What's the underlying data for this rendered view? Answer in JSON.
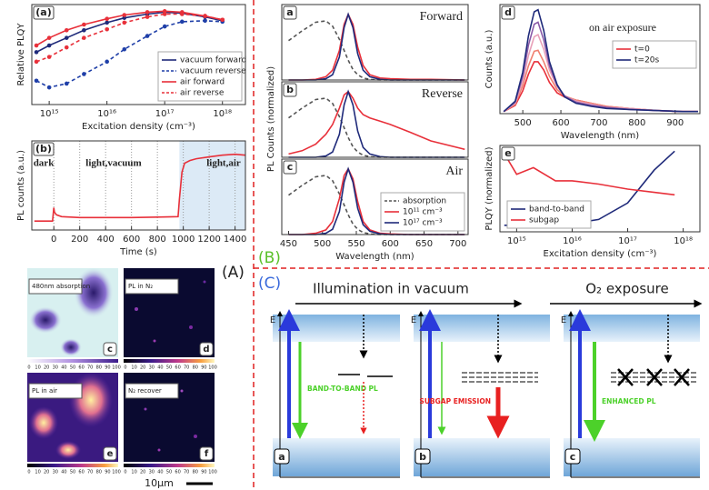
{
  "chart_data": [
    {
      "type": "line",
      "panel": "(a)",
      "ylabel": "Relative PLQY",
      "xlabel": "Excitation density (cm⁻³)",
      "xlog": true,
      "xlim": [
        500000000000000.0,
        2.5e+18
      ],
      "ylim": [
        0,
        1.05
      ],
      "xticks": [
        {
          "value": 1000000000000000.0,
          "label": "10¹⁵"
        },
        {
          "value": 1e+16,
          "label": "10¹⁶"
        },
        {
          "value": 1e+17,
          "label": "10¹⁷"
        },
        {
          "value": 1e+18,
          "label": "10¹⁸"
        }
      ],
      "x": [
        600000000000000.0,
        1000000000000000.0,
        2000000000000000.0,
        4000000000000000.0,
        1e+16,
        2e+16,
        5e+16,
        1e+17,
        2e+17,
        5e+17,
        1e+18
      ],
      "legend": "lower right",
      "series": [
        {
          "name": "vacuum forward",
          "color": "#1f2a7a",
          "marker": true,
          "values": [
            0.55,
            0.62,
            0.7,
            0.78,
            0.86,
            0.91,
            0.95,
            0.97,
            0.96,
            0.92,
            0.88
          ]
        },
        {
          "name": "vacuum reverse",
          "color": "#1f3fa8",
          "marker": true,
          "dash": true,
          "values": [
            0.25,
            0.18,
            0.22,
            0.32,
            0.45,
            0.58,
            0.72,
            0.82,
            0.87,
            0.88,
            0.87
          ]
        },
        {
          "name": "air forward",
          "color": "#e8303a",
          "marker": true,
          "values": [
            0.62,
            0.7,
            0.78,
            0.84,
            0.9,
            0.94,
            0.97,
            0.98,
            0.97,
            0.93,
            0.89
          ]
        },
        {
          "name": "air reverse",
          "color": "#e8303a",
          "marker": true,
          "dash": true,
          "values": [
            0.45,
            0.5,
            0.6,
            0.7,
            0.79,
            0.86,
            0.92,
            0.95,
            0.95,
            0.93,
            0.89
          ]
        }
      ]
    },
    {
      "type": "line",
      "panel": "(b)",
      "ylabel": "PL counts (a.u.)",
      "xlabel": "Time (s)",
      "grid": true,
      "xlim": [
        -170,
        1480
      ],
      "ylim": [
        0,
        1
      ],
      "xticks": [
        0,
        200,
        400,
        600,
        800,
        1000,
        1200,
        1400
      ],
      "shaded_xlim": [
        970,
        1480
      ],
      "annotations": [
        "dark",
        "light,vacuum",
        "light,air"
      ],
      "x": [
        -150,
        -10,
        0,
        5,
        20,
        60,
        200,
        400,
        600,
        800,
        960,
        970,
        990,
        1010,
        1050,
        1100,
        1200,
        1300,
        1400,
        1480
      ],
      "series": [
        {
          "color": "#e8303a",
          "values": [
            0.1,
            0.1,
            0.25,
            0.2,
            0.17,
            0.15,
            0.14,
            0.14,
            0.14,
            0.145,
            0.15,
            0.35,
            0.65,
            0.75,
            0.78,
            0.8,
            0.82,
            0.84,
            0.85,
            0.84
          ]
        }
      ]
    },
    {
      "type": "line",
      "panel": "a",
      "title": "Forward",
      "xlim": [
        440,
        715
      ],
      "ylim": [
        0,
        1.15
      ],
      "x": [
        450,
        470,
        490,
        505,
        515,
        525,
        532,
        538,
        545,
        552,
        560,
        570,
        585,
        600,
        630,
        660,
        710
      ],
      "series": [
        {
          "color": "#555555",
          "dash": true,
          "values": [
            0.6,
            0.75,
            0.88,
            0.9,
            0.82,
            0.62,
            0.45,
            0.3,
            0.16,
            0.08,
            0.03,
            0.01,
            0,
            0,
            0,
            0,
            0
          ]
        },
        {
          "color": "#e8303a",
          "values": [
            0,
            0,
            0.01,
            0.05,
            0.15,
            0.45,
            0.85,
            1.0,
            0.85,
            0.5,
            0.22,
            0.08,
            0.03,
            0.02,
            0.01,
            0.01,
            0
          ]
        },
        {
          "color": "#1f2a7a",
          "values": [
            0,
            0,
            0,
            0.02,
            0.08,
            0.35,
            0.8,
            1.0,
            0.8,
            0.4,
            0.15,
            0.05,
            0.01,
            0,
            0,
            0,
            0
          ]
        }
      ]
    },
    {
      "type": "line",
      "panel": "b",
      "title": "Reverse",
      "ylabel": "PL Counts (normalized)",
      "xlim": [
        440,
        715
      ],
      "ylim": [
        0,
        1.15
      ],
      "x": [
        450,
        470,
        490,
        505,
        515,
        525,
        532,
        538,
        545,
        552,
        560,
        570,
        585,
        600,
        630,
        660,
        710
      ],
      "series": [
        {
          "color": "#555555",
          "dash": true,
          "values": [
            0.6,
            0.75,
            0.88,
            0.9,
            0.82,
            0.62,
            0.45,
            0.3,
            0.16,
            0.08,
            0.03,
            0.01,
            0,
            0,
            0,
            0,
            0
          ]
        },
        {
          "color": "#e8303a",
          "values": [
            0.05,
            0.1,
            0.2,
            0.35,
            0.5,
            0.75,
            0.95,
            1.0,
            0.9,
            0.75,
            0.65,
            0.6,
            0.55,
            0.5,
            0.38,
            0.25,
            0.12
          ]
        },
        {
          "color": "#1f2a7a",
          "values": [
            0,
            0,
            0,
            0.02,
            0.08,
            0.35,
            0.8,
            1.0,
            0.8,
            0.4,
            0.15,
            0.05,
            0.01,
            0,
            0,
            0,
            0
          ]
        }
      ]
    },
    {
      "type": "line",
      "panel": "c",
      "title": "Air",
      "xlabel": "Wavelength (nm)",
      "xlim": [
        440,
        715
      ],
      "ylim": [
        0,
        1.15
      ],
      "xticks": [
        450,
        500,
        550,
        600,
        650,
        700
      ],
      "legend": "lower right",
      "x": [
        450,
        470,
        490,
        505,
        515,
        525,
        532,
        538,
        545,
        552,
        560,
        570,
        585,
        600,
        630,
        660,
        710
      ],
      "series": [
        {
          "name": "absorption",
          "color": "#555555",
          "dash": true,
          "values": [
            0.6,
            0.75,
            0.88,
            0.9,
            0.82,
            0.62,
            0.45,
            0.3,
            0.16,
            0.08,
            0.03,
            0.01,
            0,
            0,
            0,
            0,
            0
          ]
        },
        {
          "name": "10¹¹ cm⁻³",
          "color": "#e8303a",
          "values": [
            0,
            0,
            0.02,
            0.07,
            0.2,
            0.55,
            0.9,
            1.0,
            0.85,
            0.5,
            0.2,
            0.07,
            0.02,
            0.01,
            0,
            0,
            0
          ]
        },
        {
          "name": "10¹⁷ cm⁻³",
          "color": "#1f2a7a",
          "values": [
            0,
            0,
            0,
            0.02,
            0.08,
            0.35,
            0.8,
            1.0,
            0.8,
            0.4,
            0.15,
            0.05,
            0.01,
            0,
            0,
            0,
            0
          ]
        }
      ]
    },
    {
      "type": "line",
      "panel": "d",
      "title": "on air exposure",
      "ylabel": "Counts (a.u.)",
      "xlabel": "Wavelength (nm)",
      "xlim": [
        440,
        965
      ],
      "ylim": [
        0,
        1.05
      ],
      "xticks": [
        500,
        600,
        700,
        800,
        900
      ],
      "legend": "upper right",
      "x": [
        450,
        480,
        500,
        515,
        530,
        540,
        555,
        570,
        590,
        610,
        640,
        680,
        720,
        780,
        850,
        920,
        960
      ],
      "series": [
        {
          "name": "t=0",
          "color": "#e8303a",
          "values": [
            0.02,
            0.08,
            0.22,
            0.38,
            0.5,
            0.5,
            0.42,
            0.3,
            0.2,
            0.16,
            0.13,
            0.1,
            0.07,
            0.05,
            0.03,
            0.02,
            0.02
          ]
        },
        {
          "color": "#f08070",
          "values": [
            0.02,
            0.09,
            0.27,
            0.46,
            0.6,
            0.61,
            0.5,
            0.36,
            0.23,
            0.17,
            0.13,
            0.1,
            0.07,
            0.05,
            0.03,
            0.02,
            0.02
          ]
        },
        {
          "color": "#e8a0b8",
          "values": [
            0.02,
            0.1,
            0.31,
            0.56,
            0.74,
            0.76,
            0.62,
            0.42,
            0.26,
            0.17,
            0.12,
            0.09,
            0.06,
            0.05,
            0.03,
            0.02,
            0.02
          ]
        },
        {
          "color": "#8a5aa8",
          "values": [
            0.02,
            0.11,
            0.36,
            0.66,
            0.86,
            0.88,
            0.71,
            0.46,
            0.27,
            0.17,
            0.11,
            0.08,
            0.06,
            0.04,
            0.03,
            0.02,
            0.02
          ]
        },
        {
          "name": "t=20s",
          "color": "#1f2a7a",
          "values": [
            0.02,
            0.12,
            0.4,
            0.75,
            0.98,
            1.0,
            0.8,
            0.5,
            0.28,
            0.16,
            0.1,
            0.07,
            0.05,
            0.04,
            0.03,
            0.02,
            0.02
          ]
        }
      ]
    },
    {
      "type": "line",
      "panel": "e",
      "ylabel": "PLQY (normalized)",
      "xlabel": "Excitation density (cm⁻³)",
      "xlog": true,
      "xlim": [
        500000000000000.0,
        2e+18
      ],
      "ylim": [
        0,
        1.05
      ],
      "xticks": [
        {
          "value": 1000000000000000.0,
          "label": "10¹⁵"
        },
        {
          "value": 1e+16,
          "label": "10¹⁶"
        },
        {
          "value": 1e+17,
          "label": "10¹⁷"
        },
        {
          "value": 1e+18,
          "label": "10¹⁸"
        }
      ],
      "x": [
        600000000000000.0,
        1000000000000000.0,
        2000000000000000.0,
        5000000000000000.0,
        1e+16,
        3e+16,
        1e+17,
        3e+17,
        7e+17
      ],
      "legend": "lower left",
      "series": [
        {
          "name": "band-to-band",
          "color": "#1f2a7a",
          "values": [
            0.08,
            0.08,
            0.09,
            0.09,
            0.1,
            0.15,
            0.35,
            0.75,
            0.98
          ]
        },
        {
          "name": "subgap",
          "color": "#e8303a",
          "values": [
            0.95,
            0.7,
            0.78,
            0.62,
            0.62,
            0.58,
            0.52,
            0.48,
            0.45
          ]
        }
      ]
    }
  ],
  "section_labels": {
    "A": "(A)",
    "B": "(B)",
    "C": "(C)"
  },
  "micrographs": {
    "panels": [
      {
        "letter": "c",
        "label": "480nm absorption"
      },
      {
        "letter": "d",
        "label": "PL in N₂"
      },
      {
        "letter": "e",
        "label": "PL in air"
      },
      {
        "letter": "f",
        "label": "N₂ recover"
      }
    ],
    "colorbar_ticks": [
      0,
      10,
      20,
      30,
      40,
      50,
      60,
      70,
      80,
      90,
      100
    ],
    "scalebar": "10μm"
  },
  "diagram": {
    "headings": [
      "Illumination in vacuum",
      "O₂ exposure"
    ],
    "panels": [
      {
        "letter": "a",
        "axis": "E",
        "emission": "BAND-TO-BAND PL"
      },
      {
        "letter": "b",
        "axis": "E",
        "emission": "SUBGAP EMISSION"
      },
      {
        "letter": "c",
        "axis": "E",
        "emission": "ENHANCED PL"
      }
    ]
  }
}
